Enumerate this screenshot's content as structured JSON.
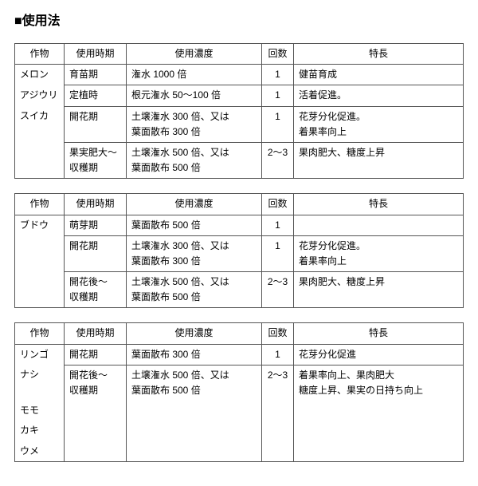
{
  "heading": "■使用法",
  "headers": {
    "crop": "作物",
    "timing": "使用時期",
    "concentration": "使用濃度",
    "count": "回数",
    "feature": "特長"
  },
  "t1": {
    "crop_l1": "メロン",
    "crop_l2": "アジウリ",
    "crop_l3": "スイカ",
    "r1": {
      "timing": "育苗期",
      "conc": "潅水 1000 倍",
      "count": "1",
      "feat": "健苗育成"
    },
    "r2": {
      "timing": "定植時",
      "conc": "根元潅水 50～100 倍",
      "count": "1",
      "feat": "活着促進。"
    },
    "r3": {
      "timing": "開花期",
      "conc_l1": "土壌潅水 300 倍、又は",
      "conc_l2": "葉面散布 300 倍",
      "count": "1",
      "feat_l1": "花芽分化促進。",
      "feat_l2": "着果率向上"
    },
    "r4": {
      "timing_l1": "果実肥大～",
      "timing_l2": "収穫期",
      "conc_l1": "土壌潅水 500 倍、又は",
      "conc_l2": "葉面散布 500 倍",
      "count": "2～3",
      "feat": "果肉肥大、糖度上昇"
    }
  },
  "t2": {
    "crop": "ブドウ",
    "r1": {
      "timing": "萌芽期",
      "conc": "葉面散布 500 倍",
      "count": "1",
      "feat": ""
    },
    "r2": {
      "timing": "開花期",
      "conc_l1": "土壌潅水 300 倍、又は",
      "conc_l2": "葉面散布 300 倍",
      "count": "1",
      "feat_l1": "花芽分化促進。",
      "feat_l2": "着果率向上"
    },
    "r3": {
      "timing_l1": "開花後～",
      "timing_l2": "収穫期",
      "conc_l1": "土壌潅水 500 倍、又は",
      "conc_l2": "葉面散布 500 倍",
      "count": "2～3",
      "feat": "果肉肥大、糖度上昇"
    }
  },
  "t3": {
    "crop_l1": "リンゴ",
    "crop_l2": "ナシ",
    "crop_l3": "モモ",
    "crop_l4": "カキ",
    "crop_l5": "ウメ",
    "r1": {
      "timing": "開花期",
      "conc": "葉面散布 300 倍",
      "count": "1",
      "feat": "花芽分化促進"
    },
    "r2": {
      "timing_l1": "開花後～",
      "timing_l2": "収穫期",
      "conc_l1": "土壌潅水 500 倍、又は",
      "conc_l2": "葉面散布 500 倍",
      "count": "2～3",
      "feat_l1": "着果率向上、果肉肥大",
      "feat_l2": "糖度上昇、果実の日持ち向上"
    }
  }
}
